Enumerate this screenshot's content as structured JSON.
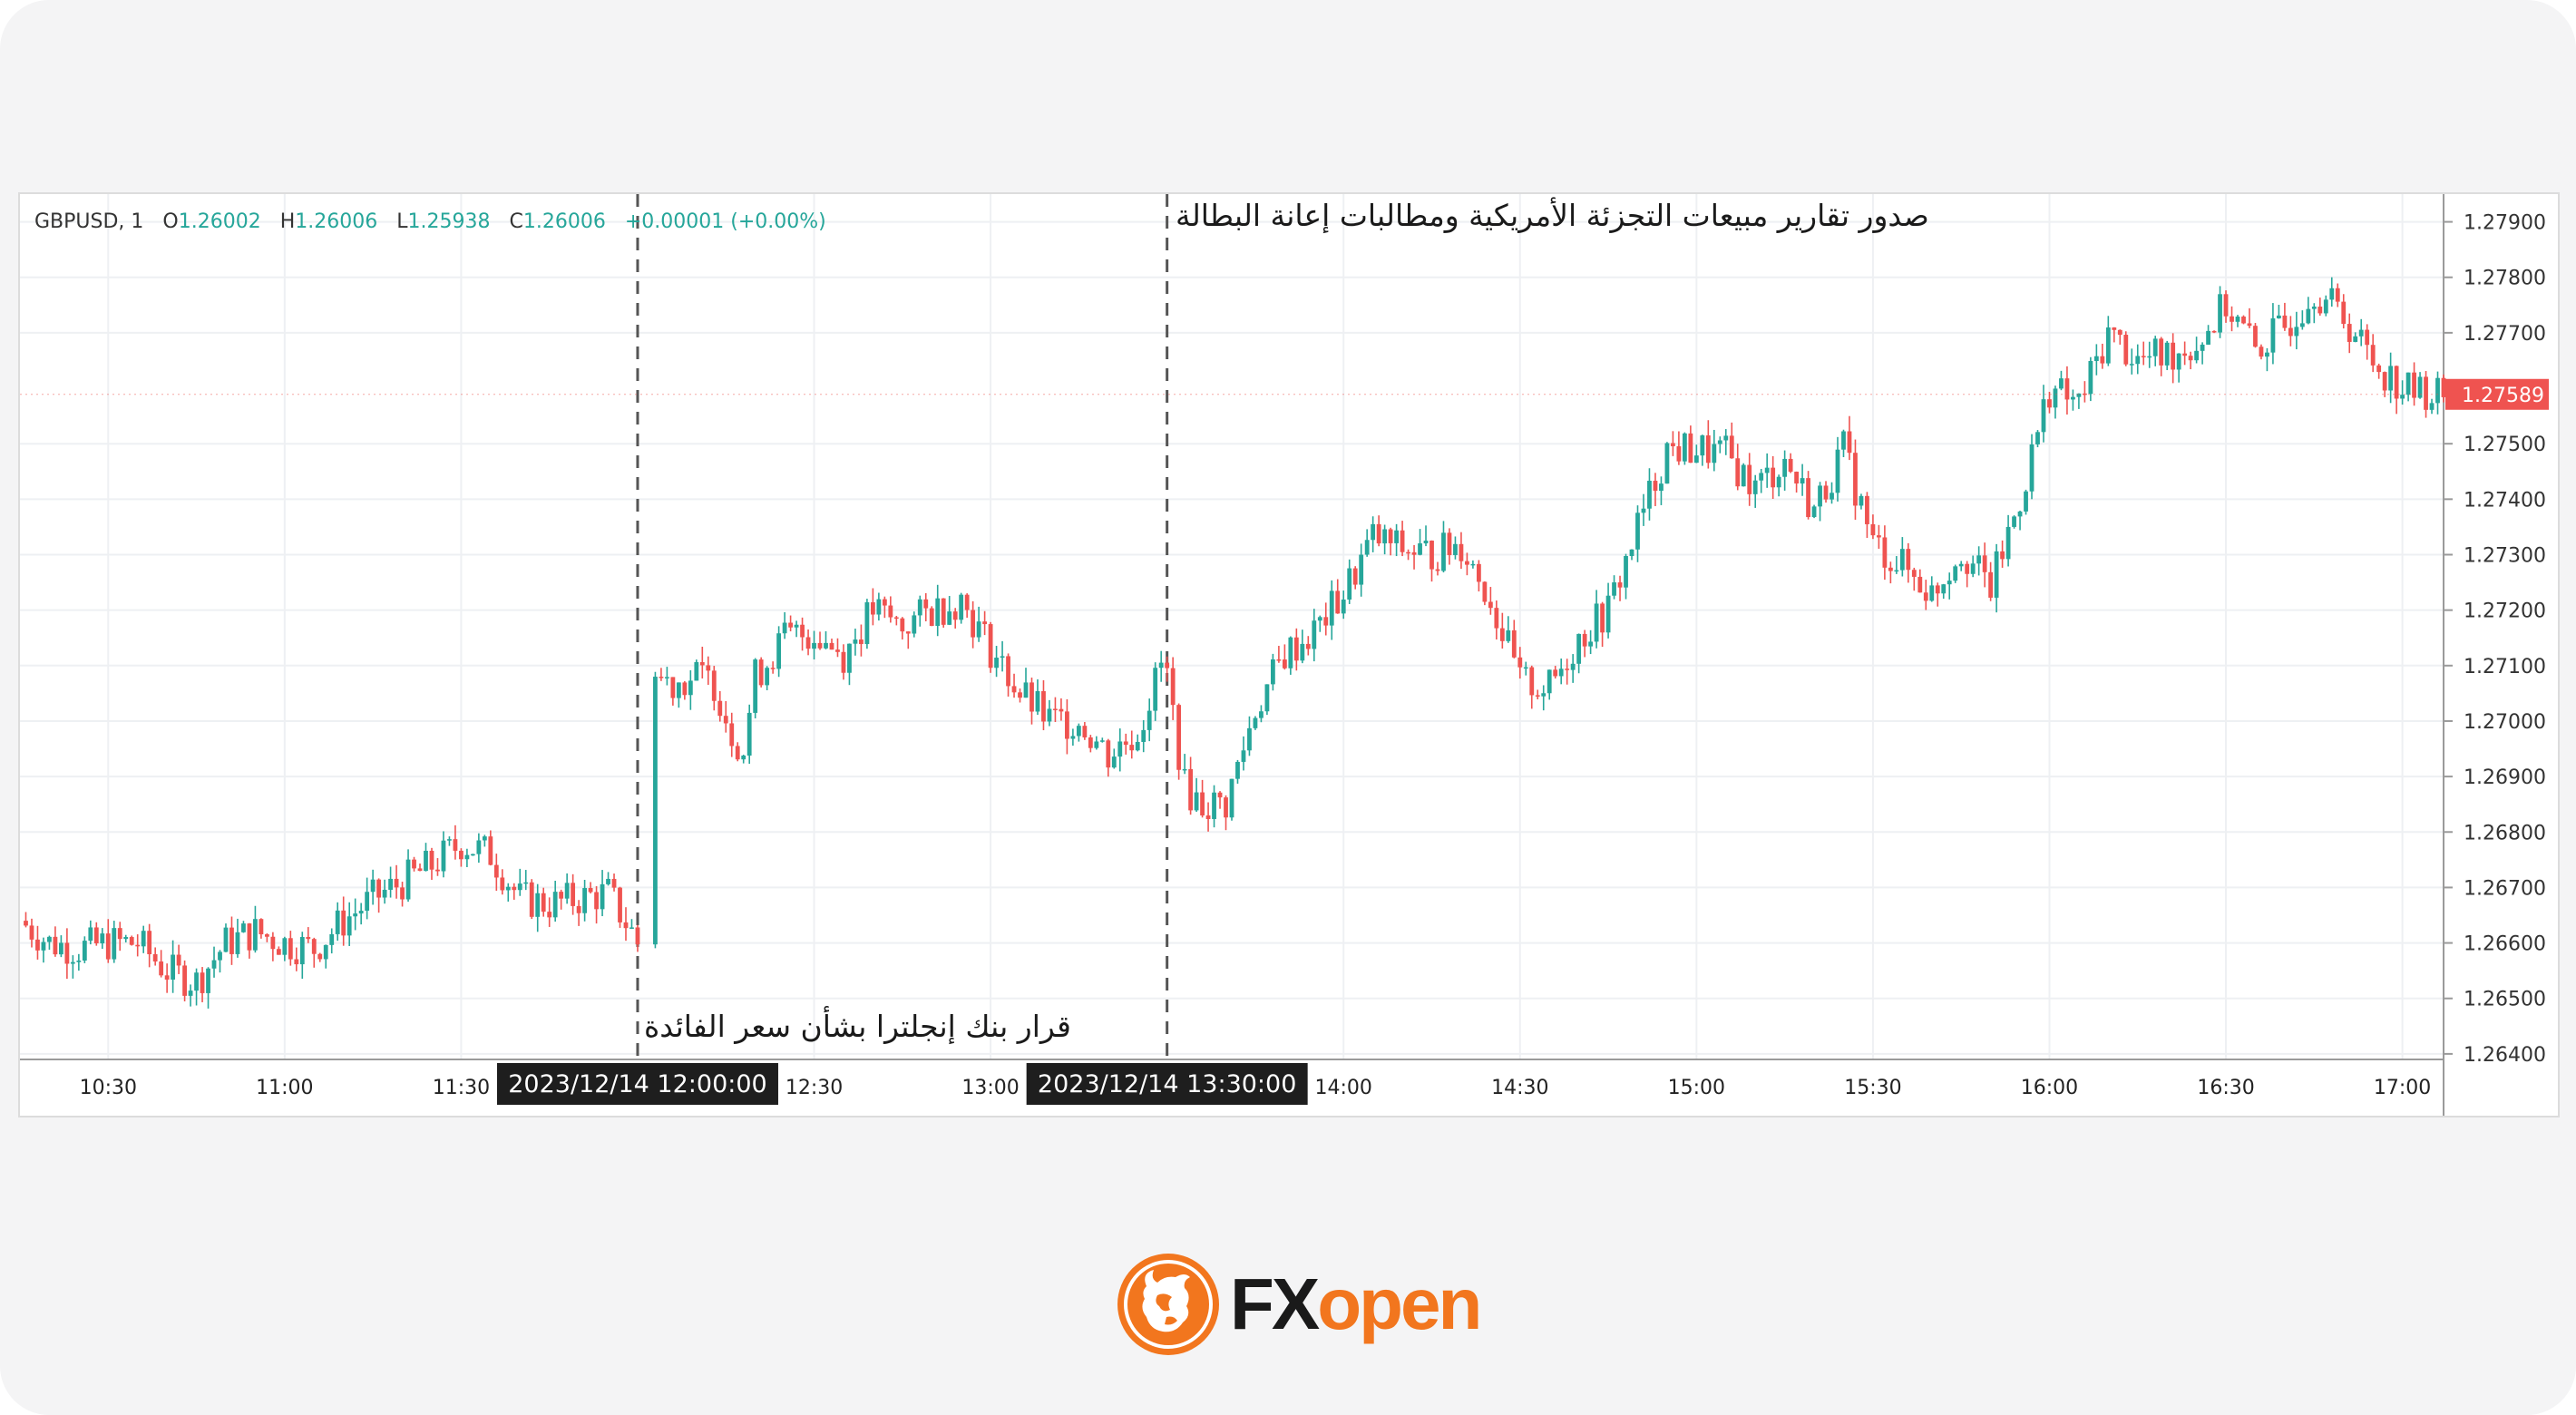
{
  "colors": {
    "up": "#26a69a",
    "down": "#ef5350",
    "price_label_bg": "#ef5350",
    "brand": "#f2761e",
    "brand_dark": "#1a1a1a"
  },
  "legend": {
    "symbol": "GBPUSD, 1",
    "open_label": "O",
    "open": "1.26002",
    "high_label": "H",
    "high": "1.26006",
    "low_label": "L",
    "low": "1.25938",
    "close_label": "C",
    "close": "1.26006",
    "change": "+0.00001 (+0.00%)"
  },
  "annotations": {
    "event_top": "صدور تقارير مبيعات التجزئة الأمريكية ومطالبات إعانة البطالة",
    "event_bottom": "قرار بنك إنجلترا بشأن سعر الفائدة"
  },
  "brand": {
    "name_fx": "FX",
    "name_open": "open",
    "logo_icon": "bull-icon"
  },
  "chart_data": {
    "type": "line",
    "style": "candlestick",
    "symbol": "GBPUSD",
    "timeframe": "1 minute",
    "current_price": "1.27589",
    "y_ticks": [
      "1.27900",
      "1.27800",
      "1.27700",
      "1.27500",
      "1.27400",
      "1.27300",
      "1.27200",
      "1.27100",
      "1.27000",
      "1.26900",
      "1.26800",
      "1.26700",
      "1.26600",
      "1.26500",
      "1.26400"
    ],
    "ylim": [
      1.2639,
      1.2795
    ],
    "x_ticks": [
      "10:30",
      "11:00",
      "11:30",
      "12:30",
      "13:00",
      "14:00",
      "14:30",
      "15:00",
      "15:30",
      "16:00",
      "16:30",
      "17:00"
    ],
    "xlim": [
      "10:15",
      "17:07"
    ],
    "event_markers": [
      {
        "time": "12:00",
        "label": "2023/12/14  12:00:00"
      },
      {
        "time": "13:30",
        "label": "2023/12/14  13:30:00"
      }
    ],
    "grid": true,
    "series": [
      {
        "x": [
          "10:15",
          "10:20",
          "10:25",
          "10:30",
          "10:35",
          "10:40",
          "10:45",
          "10:50",
          "10:55",
          "11:00",
          "11:05",
          "11:10",
          "11:15",
          "11:20",
          "11:25",
          "11:30",
          "11:35",
          "11:40",
          "11:45",
          "11:50",
          "11:55",
          "11:59",
          "12:00",
          "12:03",
          "12:06",
          "12:10",
          "12:13",
          "12:16",
          "12:18",
          "12:20",
          "12:25",
          "12:30",
          "12:35",
          "12:40",
          "12:45",
          "12:50",
          "12:55",
          "13:00",
          "13:05",
          "13:10",
          "13:15",
          "13:20",
          "13:25",
          "13:29",
          "13:30",
          "13:33",
          "13:36",
          "13:40",
          "13:45",
          "13:50",
          "13:55",
          "14:00",
          "14:05",
          "14:10",
          "14:15",
          "14:20",
          "14:25",
          "14:30",
          "14:35",
          "14:40",
          "14:45",
          "14:50",
          "14:55",
          "15:00",
          "15:05",
          "15:10",
          "15:15",
          "15:20",
          "15:25",
          "15:30",
          "15:35",
          "15:40",
          "15:45",
          "15:50",
          "15:55",
          "16:00",
          "16:05",
          "16:10",
          "16:15",
          "16:20",
          "16:25",
          "16:30",
          "16:35",
          "16:40",
          "16:45",
          "16:50",
          "16:55",
          "17:00",
          "17:05",
          "17:07"
        ],
        "values": [
          1.2664,
          1.266,
          1.2659,
          1.266,
          1.266,
          1.2655,
          1.2653,
          1.266,
          1.2662,
          1.266,
          1.2659,
          1.2664,
          1.2668,
          1.2671,
          1.2674,
          1.2678,
          1.2676,
          1.2668,
          1.2667,
          1.2668,
          1.2669,
          1.2662,
          1.266,
          1.2708,
          1.2707,
          1.2708,
          1.2707,
          1.2698,
          1.2695,
          1.2708,
          1.2715,
          1.2716,
          1.2712,
          1.272,
          1.2717,
          1.272,
          1.2722,
          1.2713,
          1.2705,
          1.27,
          1.27,
          1.2694,
          1.2698,
          1.271,
          1.2708,
          1.2688,
          1.2685,
          1.2685,
          1.2702,
          1.2712,
          1.2716,
          1.2723,
          1.2733,
          1.2731,
          1.273,
          1.2732,
          1.2722,
          1.2707,
          1.2706,
          1.2715,
          1.272,
          1.2735,
          1.2749,
          1.2749,
          1.2748,
          1.2742,
          1.2747,
          1.2738,
          1.2749,
          1.2732,
          1.2728,
          1.2723,
          1.2731,
          1.2724,
          1.274,
          1.276,
          1.2757,
          1.277,
          1.2765,
          1.2766,
          1.2768,
          1.2775,
          1.2767,
          1.2771,
          1.2778,
          1.2773,
          1.2765,
          1.276,
          1.2759,
          1.2759
        ]
      }
    ]
  }
}
